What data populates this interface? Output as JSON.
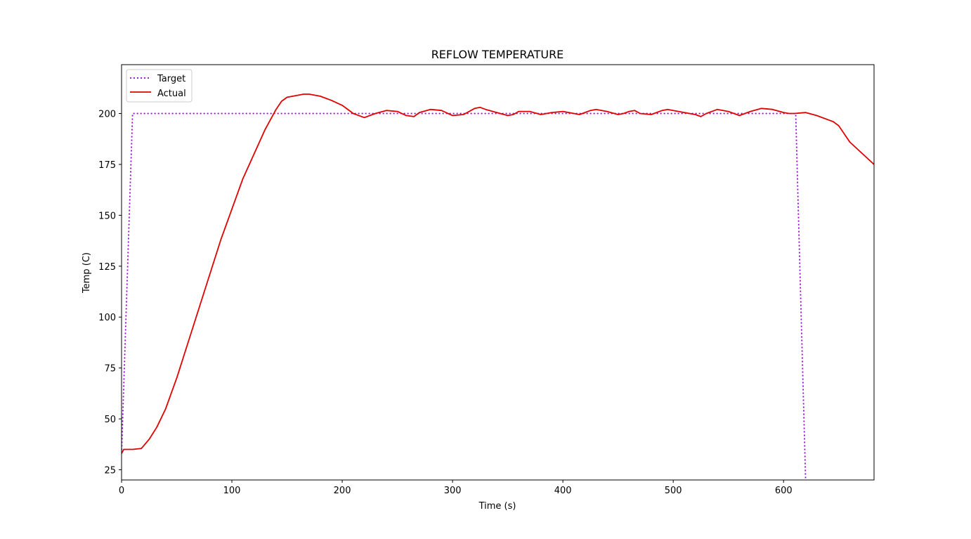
{
  "chart_data": {
    "type": "line",
    "title": "REFLOW TEMPERATURE",
    "xlabel": "Time (s)",
    "ylabel": "Temp (C)",
    "xlim": [
      0,
      682
    ],
    "ylim": [
      20,
      224
    ],
    "xticks": [
      0,
      100,
      200,
      300,
      400,
      500,
      600
    ],
    "yticks": [
      25,
      50,
      75,
      100,
      125,
      150,
      175,
      200
    ],
    "grid": false,
    "legend_position": "upper-left",
    "series": [
      {
        "name": "Target",
        "style": "dotted",
        "color": "#9400d3",
        "x": [
          0,
          10,
          611,
          620
        ],
        "y": [
          33,
          200,
          200,
          20
        ]
      },
      {
        "name": "Actual",
        "style": "solid",
        "color": "#e00000",
        "x": [
          0,
          2,
          10,
          18,
          25,
          32,
          40,
          50,
          60,
          70,
          80,
          90,
          100,
          110,
          120,
          130,
          140,
          145,
          150,
          160,
          165,
          170,
          180,
          190,
          200,
          210,
          220,
          230,
          240,
          250,
          258,
          265,
          270,
          280,
          290,
          300,
          310,
          320,
          325,
          330,
          340,
          350,
          355,
          360,
          370,
          380,
          390,
          400,
          410,
          415,
          420,
          425,
          430,
          440,
          450,
          455,
          460,
          465,
          470,
          480,
          490,
          495,
          500,
          510,
          520,
          525,
          530,
          540,
          550,
          560,
          570,
          580,
          590,
          600,
          605,
          610,
          620,
          630,
          640,
          645,
          650,
          655,
          660,
          670,
          682
        ],
        "y": [
          33,
          35,
          35,
          35.5,
          40,
          46,
          55,
          70,
          87,
          104,
          121,
          138,
          153,
          168,
          180,
          192,
          202,
          206,
          208,
          209,
          209.5,
          209.5,
          208.5,
          206.5,
          204,
          200,
          198,
          200,
          201.5,
          201,
          199,
          198.5,
          200.5,
          202,
          201.5,
          199,
          199.5,
          202.5,
          203,
          202,
          200.5,
          199,
          199.5,
          201,
          201,
          199.5,
          200.5,
          201,
          200,
          199.5,
          200.5,
          201.5,
          202,
          201,
          199.5,
          200,
          201,
          201.5,
          200,
          199.5,
          201.5,
          202,
          201.5,
          200.5,
          199.5,
          198.5,
          200,
          202,
          201,
          199,
          201,
          202.5,
          202,
          200.5,
          200,
          200,
          200.5,
          199,
          197,
          196,
          194,
          190,
          186,
          181,
          175
        ]
      }
    ]
  }
}
